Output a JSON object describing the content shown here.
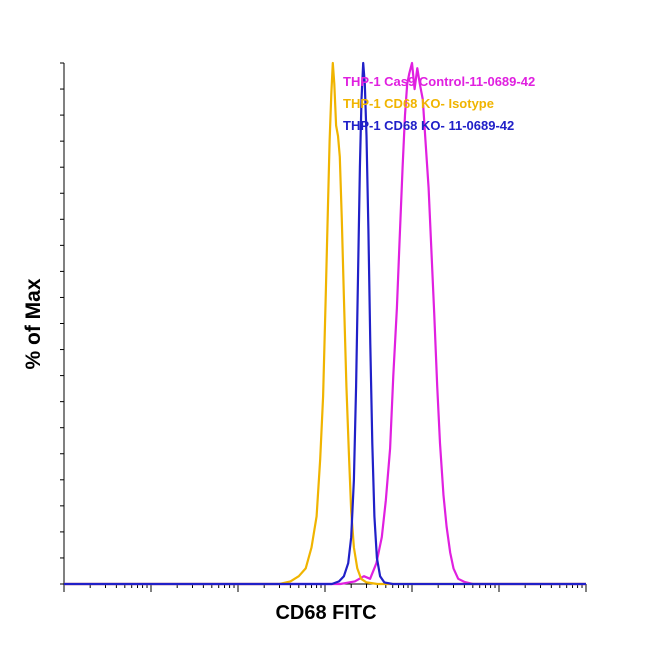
{
  "chart_data": {
    "type": "line",
    "xlabel": "CD68 FITC",
    "ylabel": "% of Max",
    "x_scale": "log",
    "xlim": [
      1,
      1000000
    ],
    "ylim": [
      0,
      100
    ],
    "grid": false,
    "legend_position": "top-right",
    "series": [
      {
        "name": "THP-1 Cas9 Control-11-0689-42",
        "color": "#e020e0",
        "points": [
          [
            1,
            0
          ],
          [
            1500,
            0
          ],
          [
            2200,
            0.5
          ],
          [
            2800,
            1.5
          ],
          [
            3300,
            1
          ],
          [
            3900,
            4
          ],
          [
            4500,
            9
          ],
          [
            5000,
            16
          ],
          [
            5600,
            26
          ],
          [
            6100,
            40
          ],
          [
            6700,
            53
          ],
          [
            7200,
            66
          ],
          [
            7800,
            80
          ],
          [
            8300,
            90
          ],
          [
            8800,
            96
          ],
          [
            9300,
            98
          ],
          [
            10000,
            100
          ],
          [
            10700,
            95
          ],
          [
            11500,
            99
          ],
          [
            12300,
            96
          ],
          [
            13300,
            93
          ],
          [
            14300,
            85
          ],
          [
            15500,
            76
          ],
          [
            16700,
            64
          ],
          [
            18000,
            52
          ],
          [
            19500,
            38
          ],
          [
            21000,
            27
          ],
          [
            23000,
            17
          ],
          [
            25000,
            11
          ],
          [
            27500,
            6
          ],
          [
            30000,
            3
          ],
          [
            34000,
            1
          ],
          [
            40000,
            0.4
          ],
          [
            50000,
            0
          ],
          [
            1000000,
            0
          ]
        ]
      },
      {
        "name": "THP-1 CD68 KO- Isotype",
        "color": "#f0b400",
        "points": [
          [
            1,
            0
          ],
          [
            300,
            0
          ],
          [
            400,
            0.5
          ],
          [
            500,
            1.5
          ],
          [
            600,
            3
          ],
          [
            700,
            7
          ],
          [
            800,
            13
          ],
          [
            880,
            24
          ],
          [
            950,
            36
          ],
          [
            1020,
            55
          ],
          [
            1080,
            72
          ],
          [
            1130,
            85
          ],
          [
            1180,
            94
          ],
          [
            1230,
            100
          ],
          [
            1280,
            96
          ],
          [
            1340,
            88
          ],
          [
            1410,
            86
          ],
          [
            1480,
            82
          ],
          [
            1560,
            70
          ],
          [
            1650,
            55
          ],
          [
            1760,
            38
          ],
          [
            1880,
            25
          ],
          [
            2000,
            14
          ],
          [
            2150,
            7
          ],
          [
            2350,
            3
          ],
          [
            2600,
            1
          ],
          [
            3000,
            0.3
          ],
          [
            4000,
            0
          ],
          [
            1000000,
            0
          ]
        ]
      },
      {
        "name": "THP-1 CD68 KO- 11-0689-42",
        "color": "#2020c8",
        "points": [
          [
            1,
            0
          ],
          [
            1200,
            0
          ],
          [
            1450,
            0.5
          ],
          [
            1650,
            1.5
          ],
          [
            1850,
            4
          ],
          [
            2000,
            9
          ],
          [
            2150,
            20
          ],
          [
            2280,
            38
          ],
          [
            2400,
            60
          ],
          [
            2520,
            80
          ],
          [
            2630,
            93
          ],
          [
            2750,
            100
          ],
          [
            2870,
            96
          ],
          [
            3000,
            86
          ],
          [
            3150,
            68
          ],
          [
            3320,
            46
          ],
          [
            3500,
            27
          ],
          [
            3700,
            13
          ],
          [
            3950,
            5
          ],
          [
            4300,
            1.5
          ],
          [
            4800,
            0.3
          ],
          [
            6000,
            0
          ],
          [
            1000000,
            0
          ]
        ]
      }
    ]
  }
}
